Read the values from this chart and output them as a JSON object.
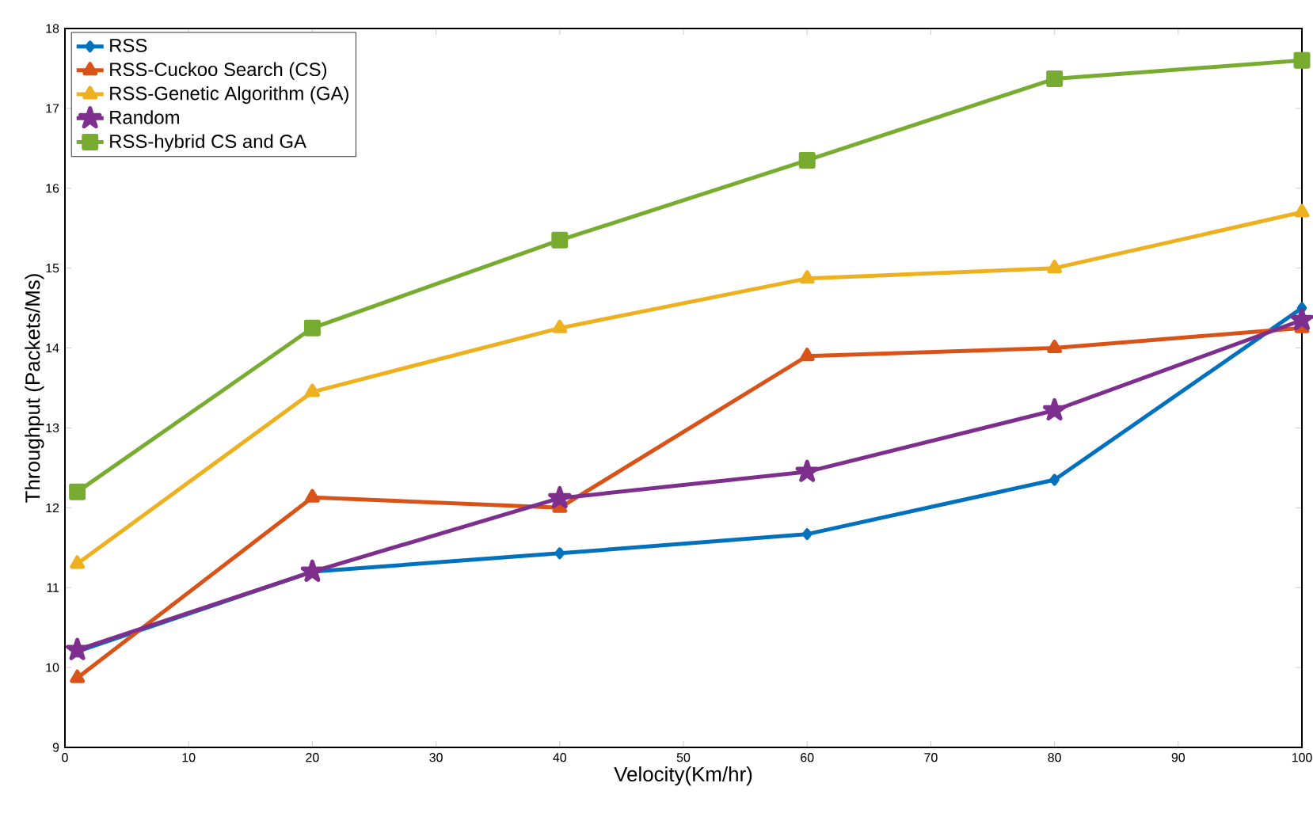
{
  "chart_data": {
    "type": "line",
    "xlabel": "Velocity(Km/hr)",
    "ylabel": "Throughput (Packets/Ms)",
    "x": [
      1,
      20,
      40,
      60,
      80,
      100
    ],
    "series": [
      {
        "name": "RSS",
        "color": "#0072bd",
        "marker": "diamond",
        "values": [
          10.2,
          11.2,
          11.43,
          11.67,
          12.35,
          14.5
        ]
      },
      {
        "name": "RSS-Cuckoo Search (CS)",
        "color": "#d95319",
        "marker": "triangle",
        "values": [
          9.87,
          12.13,
          12.0,
          13.9,
          14.0,
          14.25
        ]
      },
      {
        "name": "RSS-Genetic Algorithm (GA)",
        "color": "#edb120",
        "marker": "triangle",
        "values": [
          11.3,
          13.45,
          14.25,
          14.87,
          15.0,
          15.7
        ]
      },
      {
        "name": "Random",
        "color": "#7e2f8e",
        "marker": "star",
        "values": [
          10.22,
          11.2,
          12.12,
          12.45,
          13.22,
          14.35
        ]
      },
      {
        "name": "RSS-hybrid CS and GA",
        "color": "#77ac30",
        "marker": "square",
        "values": [
          12.2,
          14.25,
          15.35,
          16.35,
          17.37,
          17.6
        ]
      }
    ],
    "xlim": [
      0,
      100
    ],
    "xticks": [
      0,
      10,
      20,
      30,
      40,
      50,
      60,
      70,
      80,
      90,
      100
    ],
    "ylim": [
      9,
      18
    ],
    "yticks": [
      9,
      10,
      11,
      12,
      13,
      14,
      15,
      16,
      17,
      18
    ],
    "legend": "top left",
    "grid": false,
    "line_style": "solid"
  }
}
